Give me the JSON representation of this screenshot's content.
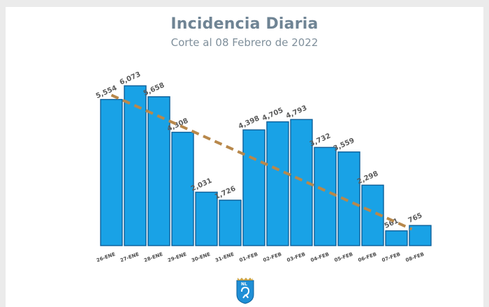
{
  "header": {
    "title": "Incidencia Diaria",
    "subtitle": "Corte al 08 Febrero de 2022"
  },
  "logo": {
    "text": "NL",
    "icon": "nuevo-leon-shield"
  },
  "colors": {
    "bar": "#19a2e6",
    "bar_border": "#0d5f99",
    "trend": "#b8884b",
    "title": "#6f8494"
  },
  "chart_data": {
    "type": "bar",
    "title": "Incidencia Diaria",
    "subtitle": "Corte al 08 Febrero de 2022",
    "categories": [
      "26-ENE",
      "27-ENE",
      "28-ENE",
      "29-ENE",
      "30-ENE",
      "31-ENE",
      "01-FEB",
      "02-FEB",
      "03-FEB",
      "04-FEB",
      "05-FEB",
      "06-FEB",
      "07-FEB",
      "08-FEB"
    ],
    "values": [
      5554,
      6073,
      5658,
      4308,
      2031,
      1726,
      4398,
      4705,
      4793,
      3732,
      3559,
      2298,
      561,
      765
    ],
    "labels": [
      "5,554",
      "6,073",
      "5,658",
      "4,308",
      "2,031",
      "1,726",
      "4,398",
      "4,705",
      "4,793",
      "3,732",
      "3,559",
      "2,298",
      "561",
      "765"
    ],
    "trendline": {
      "type": "linear",
      "style": "dashed"
    },
    "ylim": [
      0,
      7000
    ],
    "grid": false,
    "legend": "none"
  }
}
